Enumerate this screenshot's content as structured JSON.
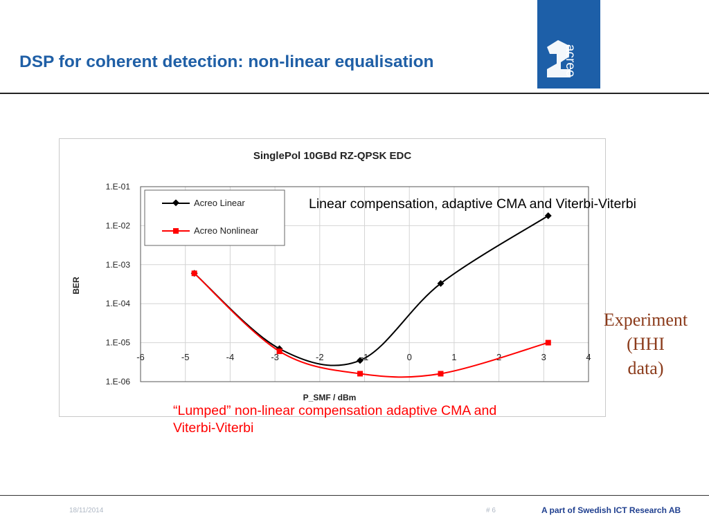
{
  "slide": {
    "title": "DSP for coherent detection: non-linear equalisation",
    "logo_text": "acreo",
    "annotation_linear": "Linear compensation, adaptive CMA and Viterbi-Viterbi",
    "annotation_lumped": "“Lumped” non-linear compensation adaptive CMA and Viterbi-Viterbi",
    "experiment_lines": [
      "Experiment",
      "(HHI",
      "data)"
    ],
    "footer_date": "18/11/2014",
    "footer_page": "# 6",
    "footer_brand": "A part of Swedish ICT Research AB"
  },
  "colors": {
    "title": "#1f5fa6",
    "logo_bg": "#1d5fa8",
    "series_linear": "#000000",
    "series_nonlinear": "#ff0000",
    "experiment": "#8b3b1b"
  },
  "chart_data": {
    "type": "line",
    "title": "SinglePol 10GBd RZ-QPSK EDC",
    "xlabel": "P_SMF / dBm",
    "ylabel": "BER",
    "xlim": [
      -6,
      4
    ],
    "ylim": [
      1e-06,
      0.1
    ],
    "yscale": "log",
    "x_ticks": [
      "-6",
      "-5",
      "-4",
      "-3",
      "-2",
      "-1",
      "0",
      "1",
      "2",
      "3",
      "4"
    ],
    "y_ticks": [
      "1.E-01",
      "1.E-02",
      "1.E-03",
      "1.E-04",
      "1.E-05",
      "1.E-06"
    ],
    "grid": true,
    "legend": "top-left",
    "series": [
      {
        "name": "Acreo Linear",
        "marker": "diamond",
        "x": [
          -4.8,
          -2.9,
          -1.1,
          0.7,
          3.1
        ],
        "y": [
          0.0006,
          7e-06,
          3.5e-06,
          0.00033,
          0.018
        ]
      },
      {
        "name": "Acreo Nonlinear",
        "marker": "square",
        "x": [
          -4.8,
          -2.9,
          -1.1,
          0.7,
          3.1
        ],
        "y": [
          0.0006,
          6e-06,
          1.6e-06,
          1.6e-06,
          1e-05
        ]
      }
    ]
  }
}
